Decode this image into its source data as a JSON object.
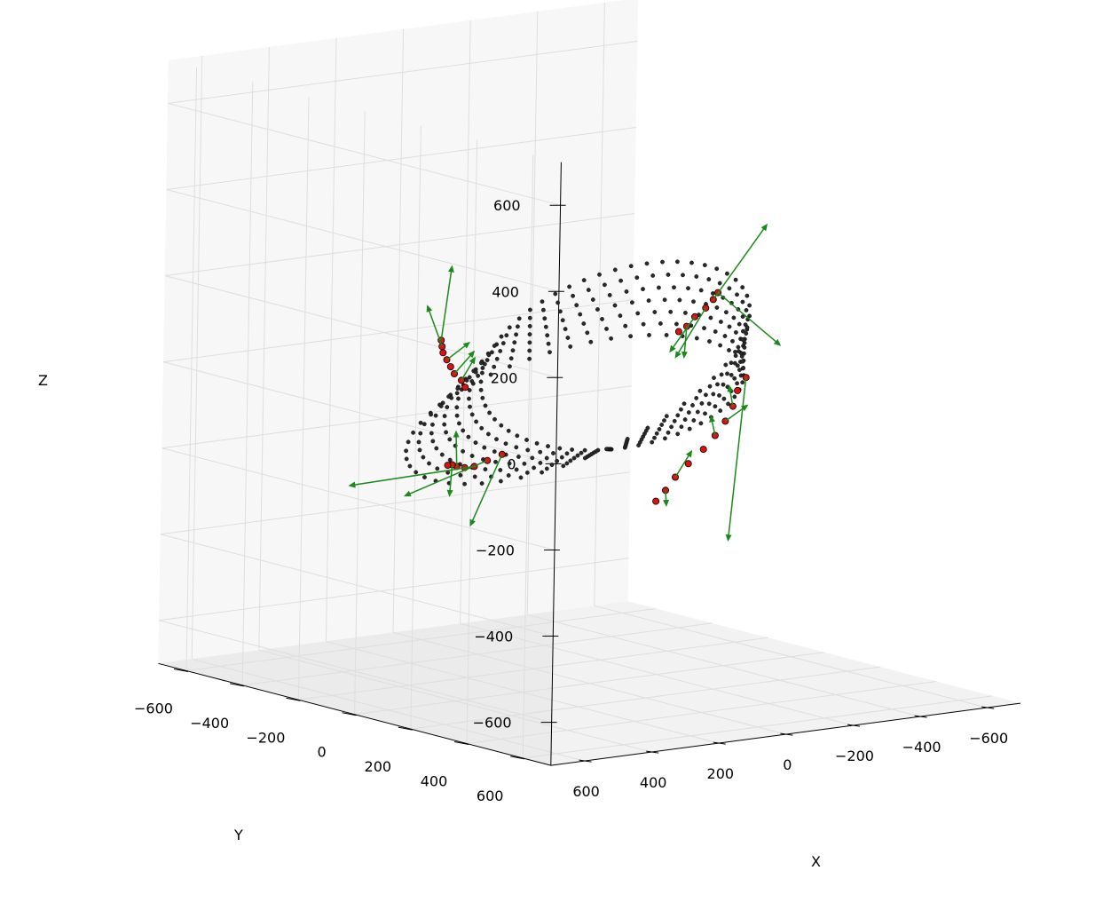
{
  "chart_data": {
    "type": "scatter",
    "projection": "3d",
    "title": "",
    "xlabel": "X",
    "ylabel": "Y",
    "zlabel": "Z",
    "xlim": [
      -700,
      700
    ],
    "ylim": [
      -700,
      700
    ],
    "zlim": [
      -700,
      700
    ],
    "x_ticks": [
      600,
      400,
      200,
      0,
      -200,
      -400,
      -600
    ],
    "x_tick_labels": [
      "600",
      "400",
      "200",
      "0",
      "−200",
      "−400",
      "−600"
    ],
    "y_ticks": [
      -600,
      -400,
      -200,
      0,
      200,
      400,
      600
    ],
    "y_tick_labels": [
      "−600",
      "−400",
      "−200",
      "0",
      "200",
      "400",
      "600"
    ],
    "z_ticks": [
      600,
      400,
      200,
      0,
      -200,
      -400,
      -600
    ],
    "z_tick_labels": [
      "600",
      "400",
      "200",
      "0",
      "−200",
      "−400",
      "−600"
    ],
    "grid": true,
    "surface": {
      "shape": "twisted band (ring)",
      "major_radius": 360,
      "half_width": 110,
      "twist_turns": 0.5,
      "tilt_degrees": 24,
      "u_samples": 54,
      "v_samples": 7
    },
    "colors": {
      "surface_points": "#2a2a2a",
      "highlight_points": "#dd1111",
      "vectors": "#1a8a1a"
    },
    "highlight_points": [
      [
        -340,
        -80,
        80
      ],
      [
        -330,
        -40,
        110
      ],
      [
        -320,
        10,
        140
      ],
      [
        -300,
        60,
        170
      ],
      [
        -280,
        100,
        195
      ],
      [
        -350,
        -120,
        60
      ],
      [
        -200,
        300,
        40
      ],
      [
        -150,
        330,
        20
      ],
      [
        -120,
        350,
        -10
      ],
      [
        -90,
        360,
        -40
      ],
      [
        -60,
        360,
        -70
      ],
      [
        -30,
        355,
        -100
      ],
      [
        10,
        350,
        -130
      ],
      [
        40,
        340,
        -160
      ],
      [
        60,
        330,
        -190
      ],
      [
        80,
        320,
        -215
      ],
      [
        340,
        80,
        -120
      ],
      [
        350,
        40,
        -140
      ],
      [
        355,
        0,
        -160
      ],
      [
        350,
        -40,
        -170
      ],
      [
        340,
        -80,
        -175
      ],
      [
        320,
        -120,
        -180
      ],
      [
        300,
        -160,
        -190
      ],
      [
        250,
        -250,
        80
      ],
      [
        230,
        -270,
        60
      ],
      [
        210,
        -290,
        40
      ],
      [
        190,
        -300,
        20
      ],
      [
        170,
        -310,
        0
      ],
      [
        150,
        -320,
        -20
      ],
      [
        120,
        -330,
        -40
      ],
      [
        100,
        -340,
        -60
      ]
    ],
    "vectors": [
      [
        -300,
        60,
        170,
        -80,
        90,
        180
      ],
      [
        -280,
        100,
        195,
        -120,
        80,
        -120
      ],
      [
        -320,
        10,
        140,
        70,
        -20,
        -110
      ],
      [
        -340,
        -80,
        80,
        40,
        40,
        -60
      ],
      [
        -330,
        -40,
        110,
        80,
        10,
        -70
      ],
      [
        -200,
        300,
        40,
        20,
        -30,
        -380
      ],
      [
        -120,
        350,
        -10,
        20,
        10,
        50
      ],
      [
        -90,
        360,
        -40,
        -30,
        40,
        40
      ],
      [
        -60,
        360,
        -70,
        30,
        20,
        50
      ],
      [
        40,
        340,
        -160,
        -30,
        20,
        60
      ],
      [
        60,
        330,
        -190,
        -20,
        -20,
        -40
      ],
      [
        340,
        80,
        -120,
        40,
        -60,
        -170
      ],
      [
        350,
        40,
        -140,
        100,
        -170,
        -100
      ],
      [
        355,
        0,
        -160,
        160,
        -250,
        -70
      ],
      [
        340,
        -80,
        -175,
        -30,
        -40,
        70
      ],
      [
        320,
        -120,
        -180,
        40,
        40,
        -60
      ],
      [
        250,
        -250,
        80,
        -20,
        10,
        170
      ],
      [
        230,
        -270,
        60,
        20,
        -30,
        90
      ],
      [
        190,
        -300,
        20,
        -40,
        30,
        40
      ],
      [
        150,
        -320,
        -20,
        -40,
        20,
        50
      ],
      [
        120,
        -330,
        -40,
        -30,
        10,
        50
      ]
    ]
  }
}
